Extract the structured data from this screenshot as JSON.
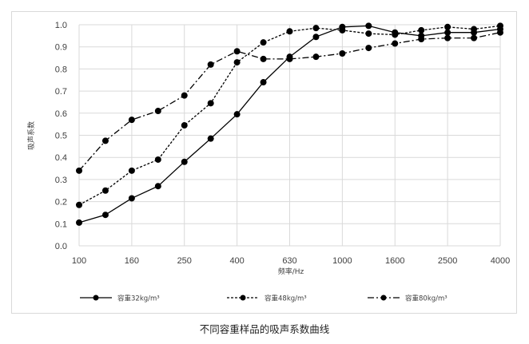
{
  "chart_data": {
    "type": "line",
    "title": "不同容重样品的吸声系数曲线",
    "xlabel": "频率/Hz",
    "ylabel": "吸声系数",
    "ylim": [
      0.0,
      1.0
    ],
    "yticks": [
      "0.0",
      "0.1",
      "0.2",
      "0.3",
      "0.4",
      "0.5",
      "0.6",
      "0.7",
      "0.8",
      "0.9",
      "1.0"
    ],
    "x": [
      100,
      125,
      160,
      200,
      250,
      315,
      400,
      500,
      630,
      800,
      1000,
      1250,
      1600,
      2000,
      2500,
      3150,
      4000
    ],
    "xtick_labels": [
      "100",
      "160",
      "250",
      "400",
      "630",
      "1000",
      "1600",
      "2500",
      "4000"
    ],
    "grid": true,
    "legend_position": "bottom",
    "series": [
      {
        "name": "容重32kg/m³",
        "line_style": "solid",
        "values": [
          0.105,
          0.14,
          0.215,
          0.27,
          0.38,
          0.485,
          0.595,
          0.74,
          0.855,
          0.945,
          0.99,
          0.995,
          0.965,
          0.95,
          0.965,
          0.965,
          0.98
        ]
      },
      {
        "name": "容重48kg/m³",
        "line_style": "dotted",
        "values": [
          0.185,
          0.25,
          0.34,
          0.39,
          0.545,
          0.645,
          0.83,
          0.92,
          0.97,
          0.985,
          0.975,
          0.96,
          0.955,
          0.975,
          0.99,
          0.98,
          0.995
        ]
      },
      {
        "name": "容重80kg/m³",
        "line_style": "dash-dot",
        "values": [
          0.34,
          0.475,
          0.57,
          0.61,
          0.68,
          0.82,
          0.88,
          0.845,
          0.845,
          0.855,
          0.87,
          0.895,
          0.915,
          0.935,
          0.94,
          0.94,
          0.965
        ]
      }
    ]
  },
  "colors": {
    "series": "#000000",
    "grid": "#d9d9d9",
    "text": "#404040"
  }
}
